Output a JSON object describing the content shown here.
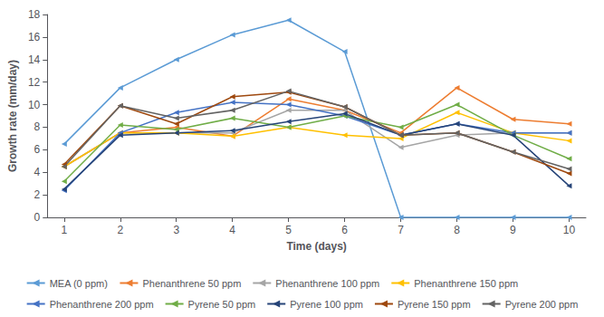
{
  "chart_data": {
    "type": "line",
    "x": [
      1,
      2,
      3,
      4,
      5,
      6,
      7,
      8,
      9,
      10
    ],
    "series": [
      {
        "name": "MEA (0 ppm)",
        "color": "#5B9BD5",
        "values": [
          6.5,
          11.5,
          14.0,
          16.2,
          17.5,
          14.7,
          0.0,
          0.0,
          0.0,
          0.0
        ]
      },
      {
        "name": "Phenanthrene 50 ppm",
        "color": "#ED7D31",
        "values": [
          4.5,
          7.5,
          8.0,
          7.2,
          10.5,
          9.5,
          7.5,
          11.5,
          8.7,
          8.3
        ]
      },
      {
        "name": "Phenanthrene 100 ppm",
        "color": "#A5A5A5",
        "values": [
          4.5,
          7.5,
          7.5,
          7.5,
          9.5,
          9.5,
          6.2,
          7.3,
          7.5,
          7.5
        ]
      },
      {
        "name": "Phenanthrene 150 ppm",
        "color": "#FFC000",
        "values": [
          4.5,
          7.5,
          7.5,
          7.2,
          8.0,
          7.3,
          7.0,
          9.3,
          7.5,
          6.8
        ]
      },
      {
        "name": "Phenanthrene 200 ppm",
        "color": "#4472C4",
        "values": [
          2.4,
          7.5,
          9.3,
          10.2,
          10.0,
          9.0,
          7.3,
          8.3,
          7.5,
          7.5
        ]
      },
      {
        "name": "Pyrene 50 ppm",
        "color": "#70AD47",
        "values": [
          3.2,
          8.2,
          7.8,
          8.8,
          8.0,
          9.0,
          8.0,
          10.0,
          7.3,
          5.2
        ]
      },
      {
        "name": "Pyrene 100 ppm",
        "color": "#264478",
        "values": [
          2.5,
          7.3,
          7.5,
          7.7,
          8.5,
          9.2,
          7.3,
          8.3,
          7.3,
          2.8
        ]
      },
      {
        "name": "Pyrene 150 ppm",
        "color": "#9E480E",
        "values": [
          4.7,
          9.9,
          8.3,
          10.7,
          11.1,
          9.8,
          7.3,
          7.5,
          5.8,
          3.9
        ]
      },
      {
        "name": "Pyrene 200 ppm",
        "color": "#636363",
        "values": [
          4.5,
          9.9,
          8.8,
          9.5,
          11.2,
          9.8,
          7.3,
          7.5,
          5.8,
          4.3
        ]
      }
    ],
    "xlabel": "Time (days)",
    "ylabel": "Growth rate (mm/day)",
    "xlim": [
      0.7,
      10.3
    ],
    "ylim": [
      0,
      18
    ],
    "xticks": [
      1,
      2,
      3,
      4,
      5,
      6,
      7,
      8,
      9,
      10
    ],
    "yticks": [
      0,
      2,
      4,
      6,
      8,
      10,
      12,
      14,
      16,
      18
    ],
    "marker": "triangle-left",
    "grid": false,
    "legend": "bottom"
  }
}
